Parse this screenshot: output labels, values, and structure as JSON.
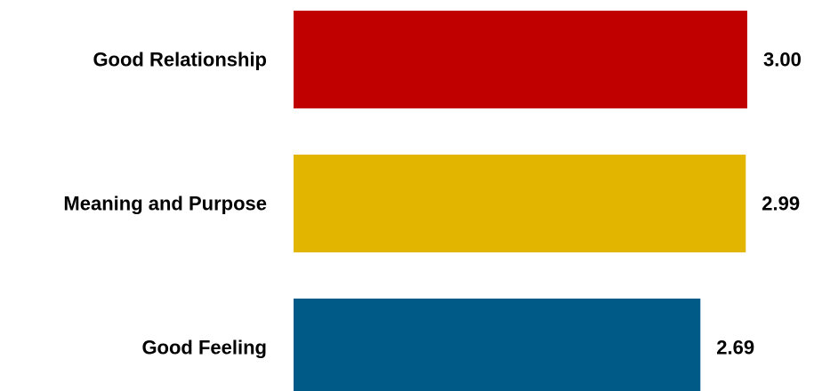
{
  "chart_data": {
    "type": "bar",
    "orientation": "horizontal",
    "categories": [
      "Good Relationship",
      "Meaning and Purpose",
      "Good Feeling"
    ],
    "values": [
      3.0,
      2.99,
      2.69
    ],
    "value_labels": [
      "3.00",
      "2.99",
      "2.69"
    ],
    "colors": [
      "#C00000",
      "#E2B600",
      "#005A87"
    ],
    "xlim": [
      0,
      3.0
    ],
    "grid": false,
    "legend": "none"
  }
}
